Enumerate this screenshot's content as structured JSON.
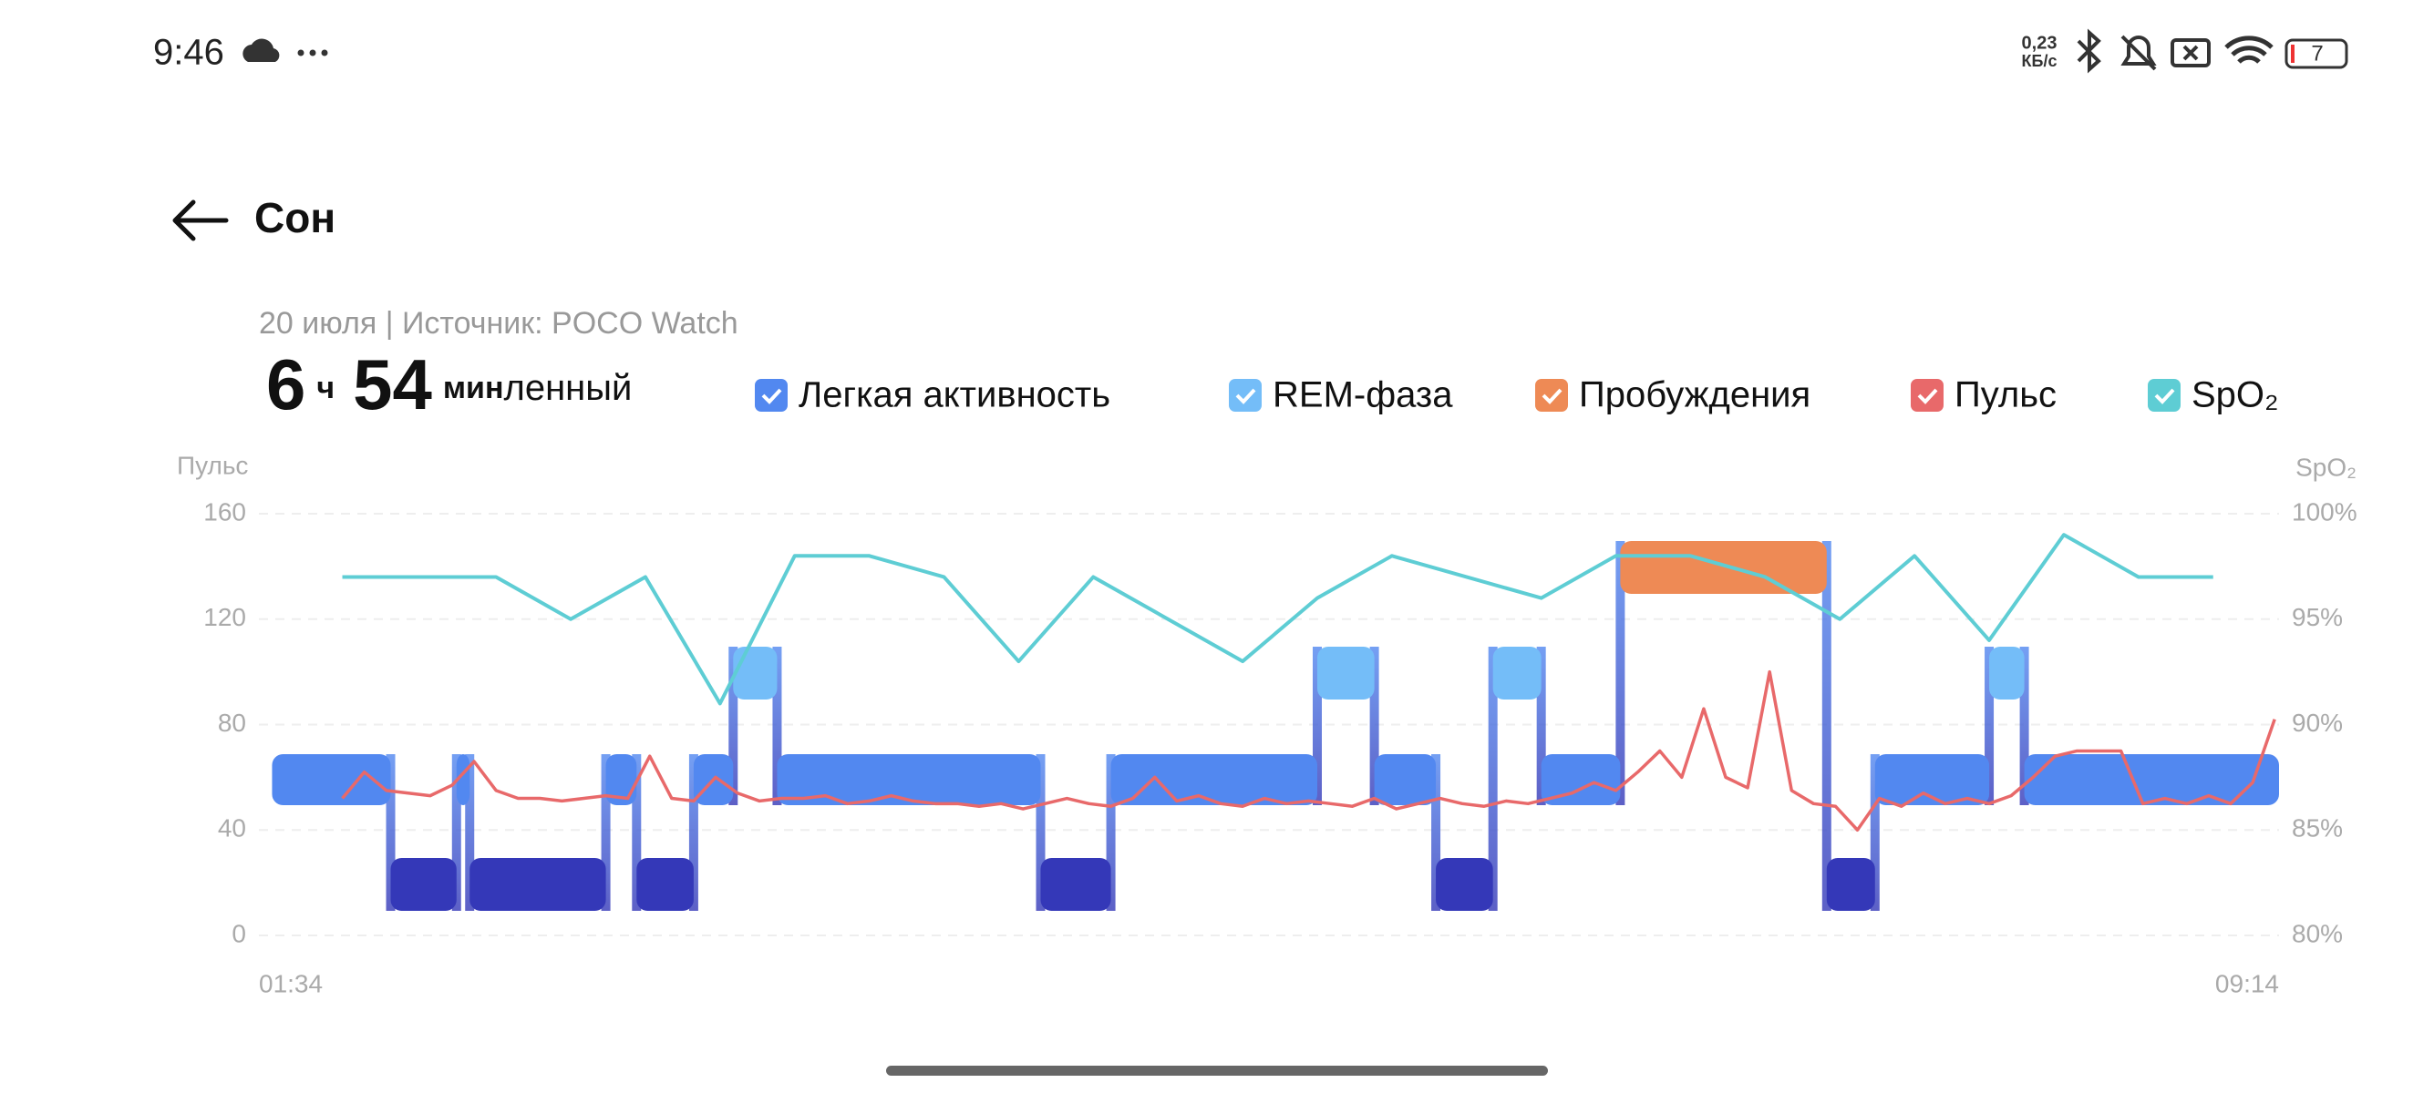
{
  "status_bar": {
    "time": "9:46",
    "net_speed_value": "0,23",
    "net_speed_unit": "КБ/с",
    "battery": "7"
  },
  "header": {
    "title": "Сон"
  },
  "chart_data": {
    "type": "sleep",
    "subtitle": "20 июля | Источник: POCO Watch",
    "duration": {
      "hours": 6,
      "hours_unit": "ч",
      "minutes": 54,
      "minutes_unit": "мин"
    },
    "legend_overflow_text": "ленный",
    "y_label": "Пульс",
    "y2_label": "SpO₂",
    "xlim": [
      94,
      554
    ],
    "xticks": [
      {
        "value": 94,
        "label": "01:34"
      },
      {
        "value": 554,
        "label": "09:14"
      }
    ],
    "ylim": [
      0,
      160
    ],
    "yticks": [
      0,
      40,
      80,
      120,
      160
    ],
    "y2lim": [
      80,
      100
    ],
    "y2ticks": [
      {
        "value": 80,
        "label": "80%"
      },
      {
        "value": 85,
        "label": "85%"
      },
      {
        "value": 90,
        "label": "90%"
      },
      {
        "value": 95,
        "label": "95%"
      },
      {
        "value": 100,
        "label": "100%"
      }
    ],
    "grid": true,
    "series": [
      {
        "name": "Легкая активность",
        "color": "#5288f0",
        "segments": [
          [
            97,
            124
          ],
          [
            139,
            142
          ],
          [
            173,
            180
          ],
          [
            193,
            202
          ],
          [
            212,
            272
          ],
          [
            288,
            335
          ],
          [
            348,
            362
          ],
          [
            386,
            404
          ],
          [
            462,
            488
          ],
          [
            496,
            554
          ]
        ]
      },
      {
        "color": "#3438b8",
        "segments": [
          [
            124,
            139
          ],
          [
            142,
            173
          ],
          [
            180,
            193
          ],
          [
            272,
            288
          ],
          [
            362,
            375
          ],
          [
            451,
            462
          ]
        ]
      },
      {
        "name": "REM-фаза",
        "color": "#74bdf8",
        "segments": [
          [
            202,
            212
          ],
          [
            335,
            348
          ],
          [
            375,
            386
          ],
          [
            488,
            496
          ]
        ]
      },
      {
        "name": "Пробуждения",
        "color": "#ee8a55",
        "segments": [
          [
            404,
            451
          ]
        ]
      },
      {
        "name": "Пульс",
        "color": "#e8696a",
        "x": [
          113,
          118,
          123,
          128,
          133,
          138,
          143,
          148,
          153,
          158,
          163,
          168,
          173,
          178,
          183,
          188,
          193,
          198,
          203,
          208,
          213,
          218,
          223,
          228,
          233,
          238,
          243,
          248,
          253,
          258,
          263,
          268,
          273,
          278,
          283,
          288,
          293,
          298,
          303,
          308,
          313,
          318,
          323,
          328,
          333,
          338,
          343,
          348,
          353,
          358,
          363,
          368,
          373,
          378,
          383,
          388,
          393,
          398,
          403,
          408,
          413,
          418,
          423,
          428,
          433,
          438,
          443,
          448,
          453,
          458,
          463,
          468,
          473,
          478,
          483,
          488,
          493,
          498,
          503,
          508,
          513,
          518,
          523,
          528,
          533,
          538,
          543,
          548,
          553
        ],
        "values": [
          52,
          62,
          55,
          54,
          53,
          57,
          66,
          55,
          52,
          52,
          51,
          52,
          53,
          52,
          68,
          52,
          51,
          60,
          54,
          51,
          52,
          52,
          53,
          50,
          51,
          53,
          51,
          50,
          50,
          49,
          50,
          48,
          50,
          52,
          50,
          49,
          52,
          60,
          51,
          53,
          50,
          49,
          52,
          50,
          51,
          50,
          49,
          52,
          48,
          50,
          52,
          50,
          49,
          51,
          50,
          52,
          54,
          58,
          55,
          62,
          70,
          60,
          86,
          60,
          56,
          100,
          55,
          50,
          49,
          40,
          52,
          49,
          54,
          50,
          52,
          50,
          53,
          60,
          68,
          70,
          70,
          70,
          50,
          52,
          50,
          53,
          50,
          58,
          82
        ]
      },
      {
        "name": "SpO₂",
        "color": "#5ecdd4",
        "axis": "y2",
        "x": [
          113,
          148,
          165,
          182,
          199,
          216,
          233,
          250,
          267,
          284,
          318,
          335,
          352,
          386,
          403,
          420,
          437,
          454,
          471,
          488,
          505,
          522,
          539
        ],
        "values": [
          97,
          97,
          95,
          97,
          91,
          98,
          98,
          97,
          93,
          97,
          93,
          96,
          98,
          96,
          98,
          98,
          97,
          95,
          98,
          94,
          99,
          97,
          97
        ]
      }
    ]
  }
}
